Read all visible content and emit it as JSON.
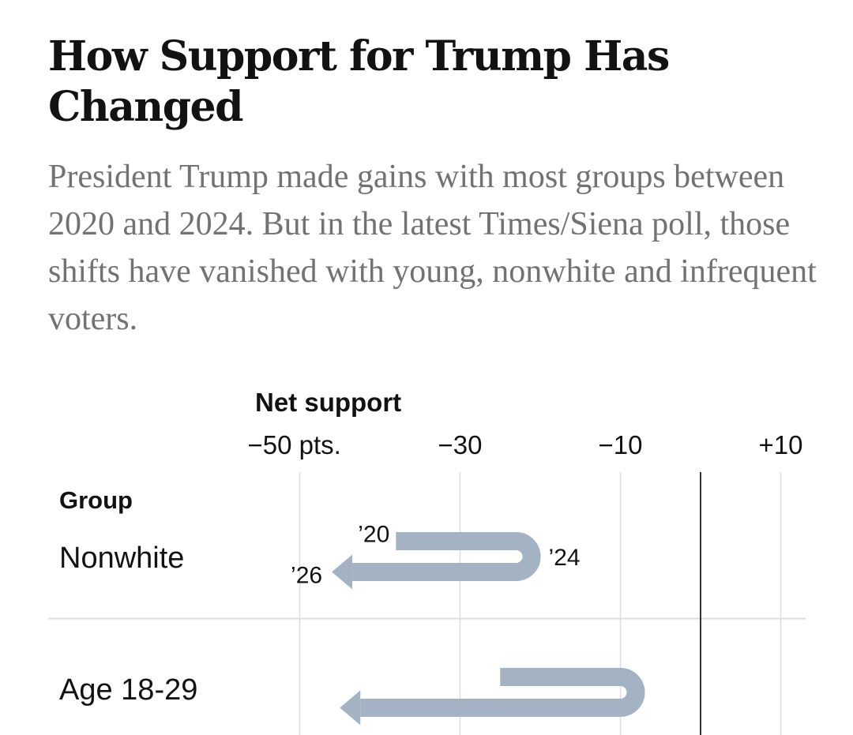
{
  "header": {
    "title": "How Support for Trump Has Changed",
    "subtitle": "President Trump made gains with most groups between 2020 and 2024. But in the latest Times/Siena poll, those shifts have vanished with young, nonwhite and infrequent voters."
  },
  "colors": {
    "arrow": "#a3b3c4",
    "zero_line": "#333333",
    "grid": "#dddddd",
    "text": "#121212",
    "subtitle": "#727272"
  },
  "chart_data": {
    "type": "arrow",
    "title": "How Support for Trump Has Changed",
    "xlabel": "Net support",
    "row_header": "Group",
    "xlim": [
      -50,
      10
    ],
    "xticks": [
      {
        "value": -50,
        "label": "−50 pts."
      },
      {
        "value": -30,
        "label": "−30"
      },
      {
        "value": -10,
        "label": "−10"
      },
      {
        "value": 10,
        "label": "+10"
      }
    ],
    "grid_values": [
      -50,
      -30,
      -10,
      10
    ],
    "zero_line": 0,
    "series_labels": [
      "’20",
      "’24",
      "’26"
    ],
    "rows": [
      {
        "group": "Nonwhite",
        "y2020": -38,
        "y2024": -23,
        "y2026": -46,
        "show_year_labels": true
      },
      {
        "group": "Age 18-29",
        "y2020": -25,
        "y2024": -10,
        "y2026": -45,
        "show_year_labels": false
      }
    ]
  }
}
